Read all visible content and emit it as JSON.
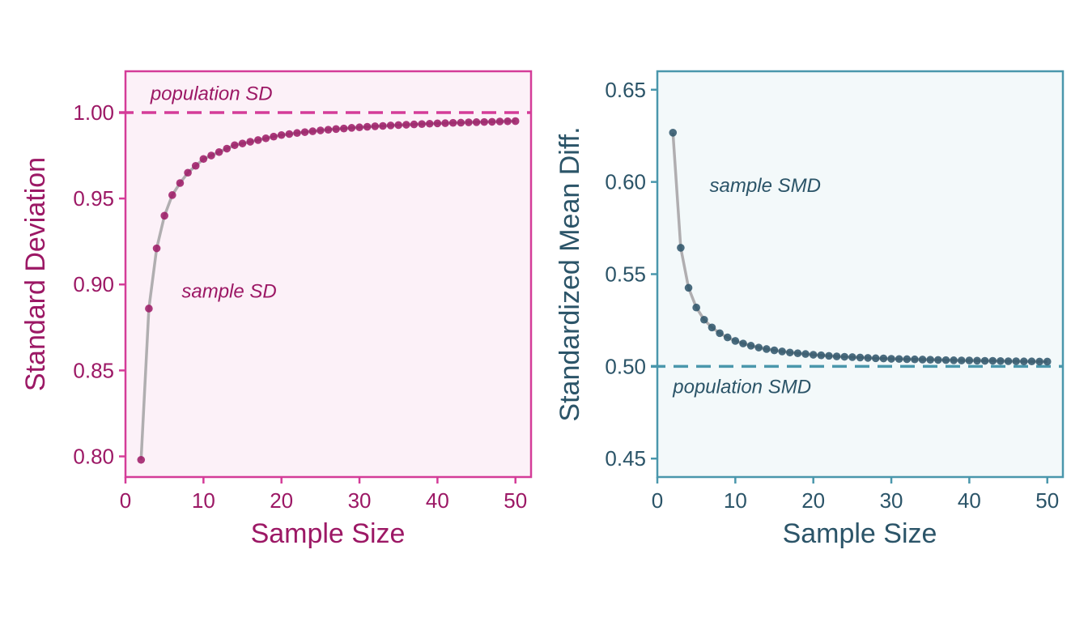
{
  "chart_data": [
    {
      "type": "scatter",
      "xlabel": "Sample Size",
      "ylabel": "Standard Deviation",
      "xlim": [
        0,
        52
      ],
      "ylim": [
        0.788,
        1.024
      ],
      "x_ticks": [
        "0",
        "10",
        "20",
        "30",
        "40",
        "50"
      ],
      "y_ticks": [
        "0.80",
        "0.85",
        "0.90",
        "0.95",
        "1.00"
      ],
      "x_tick_values": [
        0,
        10,
        20,
        30,
        40,
        50
      ],
      "y_tick_values": [
        0.8,
        0.85,
        0.9,
        0.95,
        1.0
      ],
      "reference_line": {
        "value": 1.0,
        "orientation": "horizontal",
        "style": "dashed"
      },
      "annotations": [
        {
          "text": "population SD",
          "x": 3.2,
          "y": 1.011
        },
        {
          "text": "sample SD",
          "x": 7.2,
          "y": 0.896
        }
      ],
      "series": [
        {
          "x": [
            2,
            3,
            4,
            5,
            6,
            7,
            8,
            9,
            10,
            11,
            12,
            13,
            14,
            15,
            16,
            17,
            18,
            19,
            20,
            21,
            22,
            23,
            24,
            25,
            26,
            27,
            28,
            29,
            30,
            31,
            32,
            33,
            34,
            35,
            36,
            37,
            38,
            39,
            40,
            41,
            42,
            43,
            44,
            45,
            46,
            47,
            48,
            49,
            50
          ],
          "values": [
            0.798,
            0.886,
            0.921,
            0.94,
            0.952,
            0.959,
            0.965,
            0.969,
            0.973,
            0.975,
            0.977,
            0.979,
            0.981,
            0.982,
            0.983,
            0.984,
            0.985,
            0.986,
            0.9869,
            0.9875,
            0.9881,
            0.9886,
            0.9891,
            0.9896,
            0.99,
            0.9904,
            0.9907,
            0.9911,
            0.9914,
            0.9917,
            0.992,
            0.9922,
            0.9925,
            0.9927,
            0.9929,
            0.9931,
            0.9933,
            0.9935,
            0.9937,
            0.9938,
            0.994,
            0.9941,
            0.9943,
            0.9944,
            0.9945,
            0.9946,
            0.9948,
            0.9949,
            0.995
          ]
        }
      ],
      "colors": {
        "accent": "#9c1865",
        "frame": "#d43c98",
        "panel_bg": "#fcf1f8",
        "line": "#b0aeb0",
        "dash": "#d43c98"
      }
    },
    {
      "type": "scatter",
      "xlabel": "Sample Size",
      "ylabel": "Standardized Mean Diff.",
      "xlim": [
        0,
        52
      ],
      "ylim": [
        0.44,
        0.66
      ],
      "x_ticks": [
        "0",
        "10",
        "20",
        "30",
        "40",
        "50"
      ],
      "y_ticks": [
        "0.45",
        "0.50",
        "0.55",
        "0.60",
        "0.65"
      ],
      "x_tick_values": [
        0,
        10,
        20,
        30,
        40,
        50
      ],
      "y_tick_values": [
        0.45,
        0.5,
        0.55,
        0.6,
        0.65
      ],
      "reference_line": {
        "value": 0.5,
        "orientation": "horizontal",
        "style": "dashed"
      },
      "annotations": [
        {
          "text": "sample SMD",
          "x": 6.7,
          "y": 0.598
        },
        {
          "text": "population SMD",
          "x": 2.0,
          "y": 0.489
        }
      ],
      "series": [
        {
          "x": [
            2,
            3,
            4,
            5,
            6,
            7,
            8,
            9,
            10,
            11,
            12,
            13,
            14,
            15,
            16,
            17,
            18,
            19,
            20,
            21,
            22,
            23,
            24,
            25,
            26,
            27,
            28,
            29,
            30,
            31,
            32,
            33,
            34,
            35,
            36,
            37,
            38,
            39,
            40,
            41,
            42,
            43,
            44,
            45,
            46,
            47,
            48,
            49,
            50
          ],
          "values": [
            0.6267,
            0.5643,
            0.5426,
            0.5319,
            0.5253,
            0.5211,
            0.518,
            0.5157,
            0.5138,
            0.5124,
            0.5112,
            0.5102,
            0.5094,
            0.5087,
            0.5081,
            0.5075,
            0.5071,
            0.5067,
            0.5063,
            0.506,
            0.5057,
            0.5054,
            0.5052,
            0.505,
            0.5048,
            0.5046,
            0.5044,
            0.5043,
            0.5041,
            0.504,
            0.5039,
            0.5038,
            0.5037,
            0.5036,
            0.5035,
            0.5034,
            0.5033,
            0.5032,
            0.5032,
            0.5031,
            0.503,
            0.503,
            0.5029,
            0.5028,
            0.5028,
            0.5027,
            0.5027,
            0.5026,
            0.5026
          ]
        }
      ],
      "colors": {
        "accent": "#2b5468",
        "frame": "#4a97ac",
        "panel_bg": "#f3f9fa",
        "line": "#b0aeb0",
        "dash": "#4a97ac"
      }
    }
  ]
}
